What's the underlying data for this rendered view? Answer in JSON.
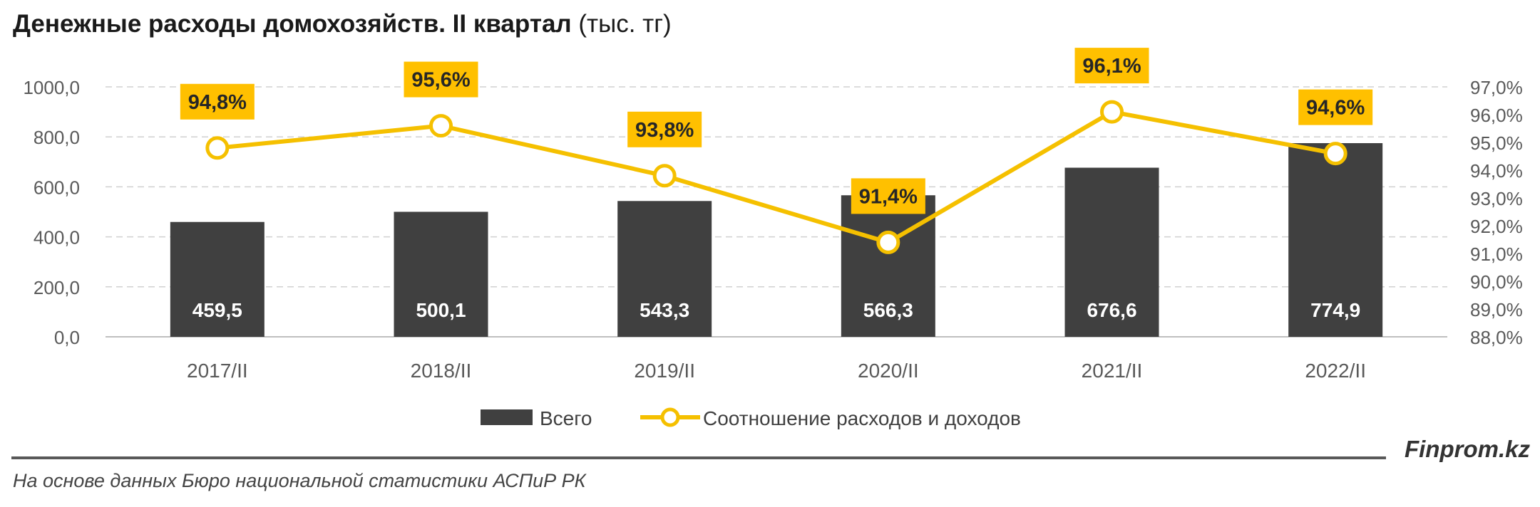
{
  "header": {
    "title_main": "Денежные расходы домохозяйств. II квартал",
    "title_unit": " (тыс. тг)"
  },
  "footer": {
    "source": "На основе данных Бюро национальной статистики АСПиР РК",
    "brand": "Finprom.kz"
  },
  "chart_data": {
    "type": "bar",
    "categories": [
      "2017/II",
      "2018/II",
      "2019/II",
      "2020/II",
      "2021/II",
      "2022/II"
    ],
    "series": [
      {
        "name": "Всего",
        "type": "bar",
        "axis": "left",
        "color": "#404040",
        "values": [
          459.5,
          500.1,
          543.3,
          566.3,
          676.6,
          774.9
        ],
        "labels": [
          "459,5",
          "500,1",
          "543,3",
          "566,3",
          "676,6",
          "774,9"
        ]
      },
      {
        "name": "Соотношение расходов и доходов",
        "type": "line",
        "axis": "right",
        "color": "#F5C000",
        "values": [
          94.8,
          95.6,
          93.8,
          91.4,
          96.1,
          94.6
        ],
        "labels": [
          "94,8%",
          "95,6%",
          "93,8%",
          "91,4%",
          "96,1%",
          "94,6%"
        ]
      }
    ],
    "y_left": {
      "range": [
        0,
        1000
      ],
      "ticks": [
        0,
        200,
        400,
        600,
        800,
        1000
      ],
      "tick_labels": [
        "0,0",
        "200,0",
        "400,0",
        "600,0",
        "800,0",
        "1000,0"
      ]
    },
    "y_right": {
      "range": [
        88,
        97
      ],
      "ticks": [
        88,
        89,
        90,
        91,
        92,
        93,
        94,
        95,
        96,
        97
      ],
      "tick_labels": [
        "88,0%",
        "89,0%",
        "90,0%",
        "91,0%",
        "92,0%",
        "93,0%",
        "94,0%",
        "95,0%",
        "96,0%",
        "97,0%"
      ]
    },
    "grid": true,
    "legend_position": "bottom"
  }
}
